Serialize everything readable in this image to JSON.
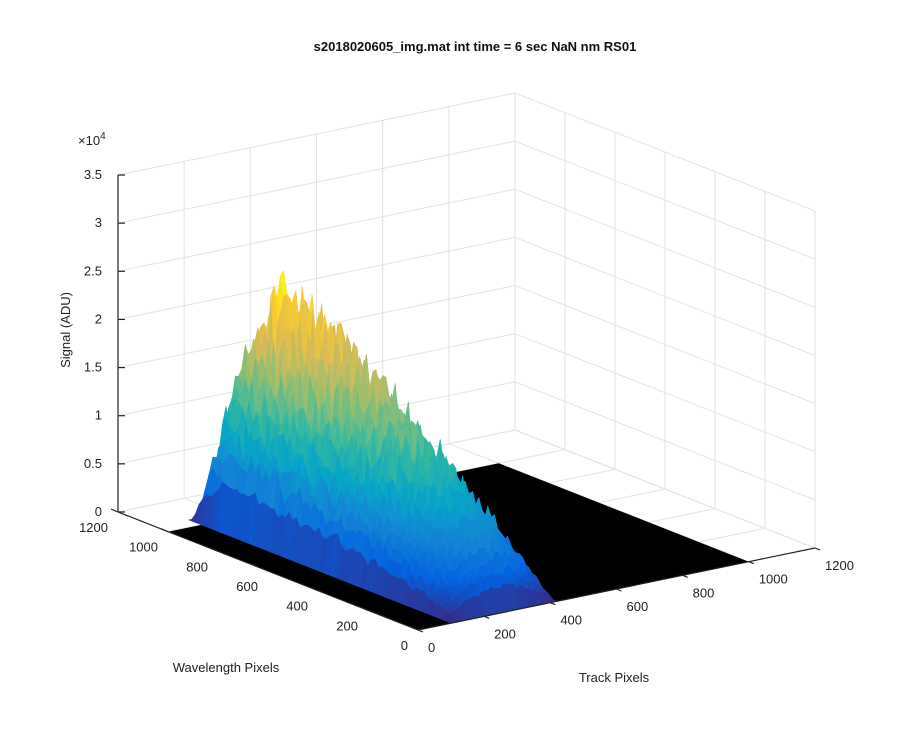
{
  "chart_data": {
    "type": "surface",
    "title": "s2018020605_img.mat int time = 6 sec  NaN nm RS01",
    "xlabel": "Track Pixels",
    "ylabel": "Wavelength Pixels",
    "zlabel": "Signal (ADU)",
    "z_exponent_label": "×10",
    "z_exponent_power": "4",
    "x_range": [
      0,
      1200
    ],
    "y_range": [
      0,
      1200
    ],
    "z_range": [
      0,
      35000
    ],
    "x_ticks": [
      "0",
      "200",
      "400",
      "600",
      "800",
      "1000",
      "1200"
    ],
    "y_ticks": [
      "0",
      "200",
      "400",
      "600",
      "800",
      "1000",
      "1200"
    ],
    "z_ticks": [
      "0",
      "0.5",
      "1",
      "1.5",
      "2",
      "2.5",
      "3",
      "3.5"
    ],
    "z_tick_values": [
      0,
      5000,
      10000,
      15000,
      20000,
      25000,
      30000,
      35000
    ],
    "colormap": "parula",
    "colors": [
      "#352a87",
      "#0363e1",
      "#1485d4",
      "#06a7c6",
      "#38b99e",
      "#92bf73",
      "#d9ba56",
      "#fcce2e",
      "#f9fb0e"
    ],
    "grid": true,
    "signal_region": {
      "track_pixels": [
        100,
        420
      ],
      "wavelength_pixels": [
        0,
        1050
      ]
    },
    "peak_signal": 26000
  }
}
